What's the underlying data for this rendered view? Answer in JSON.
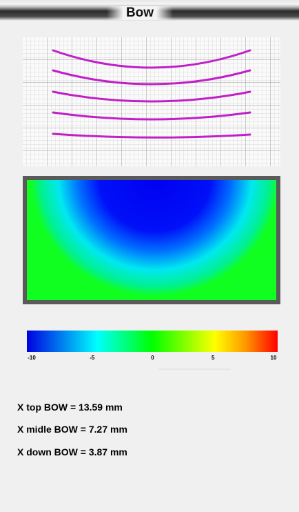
{
  "header": {
    "title": "Bow"
  },
  "colorbar": {
    "ticks": [
      -10,
      -5,
      0,
      5,
      10
    ]
  },
  "results": [
    "X top BOW = 13.59 mm",
    "X midle BOW = 7.27 mm",
    "X down BOW = 3.87 mm"
  ]
}
